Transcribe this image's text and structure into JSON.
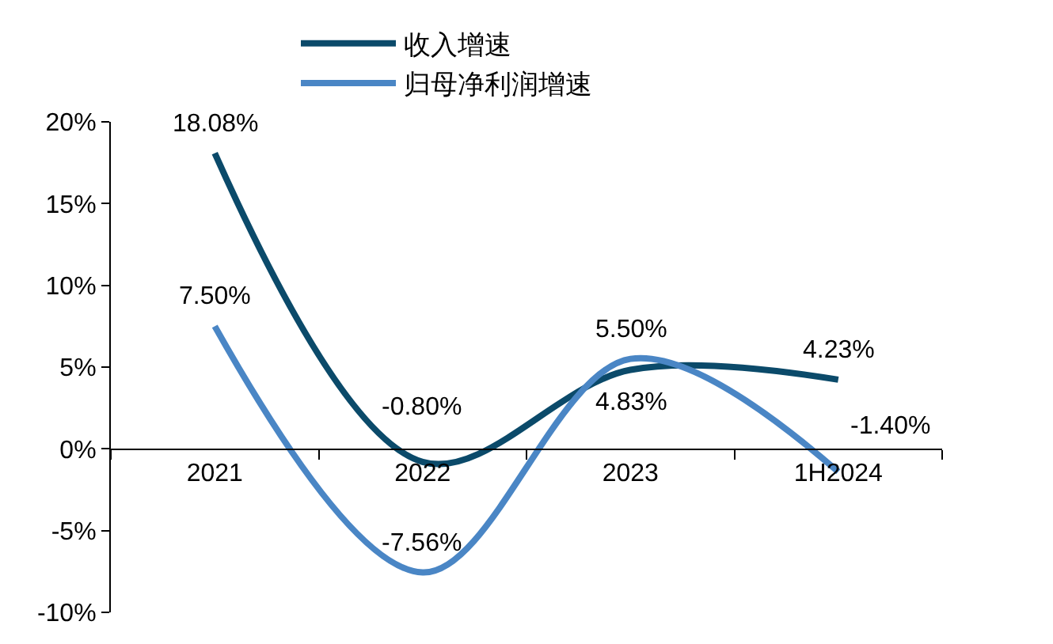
{
  "chart_data": {
    "type": "line",
    "categories": [
      "2021",
      "2022",
      "2023",
      "1H2024"
    ],
    "series": [
      {
        "name": "收入增速",
        "color": "#0b4a6a",
        "values": [
          18.08,
          -0.8,
          4.83,
          4.23
        ],
        "value_labels": [
          "18.08%",
          "-0.80%",
          "4.83%",
          "4.23%"
        ]
      },
      {
        "name": "归母净利润增速",
        "color": "#4a86c5",
        "values": [
          7.5,
          -7.56,
          5.5,
          -1.4
        ],
        "value_labels": [
          "7.50%",
          "-7.56%",
          "5.50%",
          "-1.40%"
        ]
      }
    ],
    "ylim": [
      -10,
      20
    ],
    "yticks": [
      {
        "value": -10,
        "label": "-10%"
      },
      {
        "value": -5,
        "label": "-5%"
      },
      {
        "value": 0,
        "label": "0%"
      },
      {
        "value": 5,
        "label": "5%"
      },
      {
        "value": 10,
        "label": "10%"
      },
      {
        "value": 15,
        "label": "15%"
      },
      {
        "value": 20,
        "label": "20%"
      }
    ],
    "legend": "top",
    "marker": "none",
    "line_style": "solid"
  }
}
